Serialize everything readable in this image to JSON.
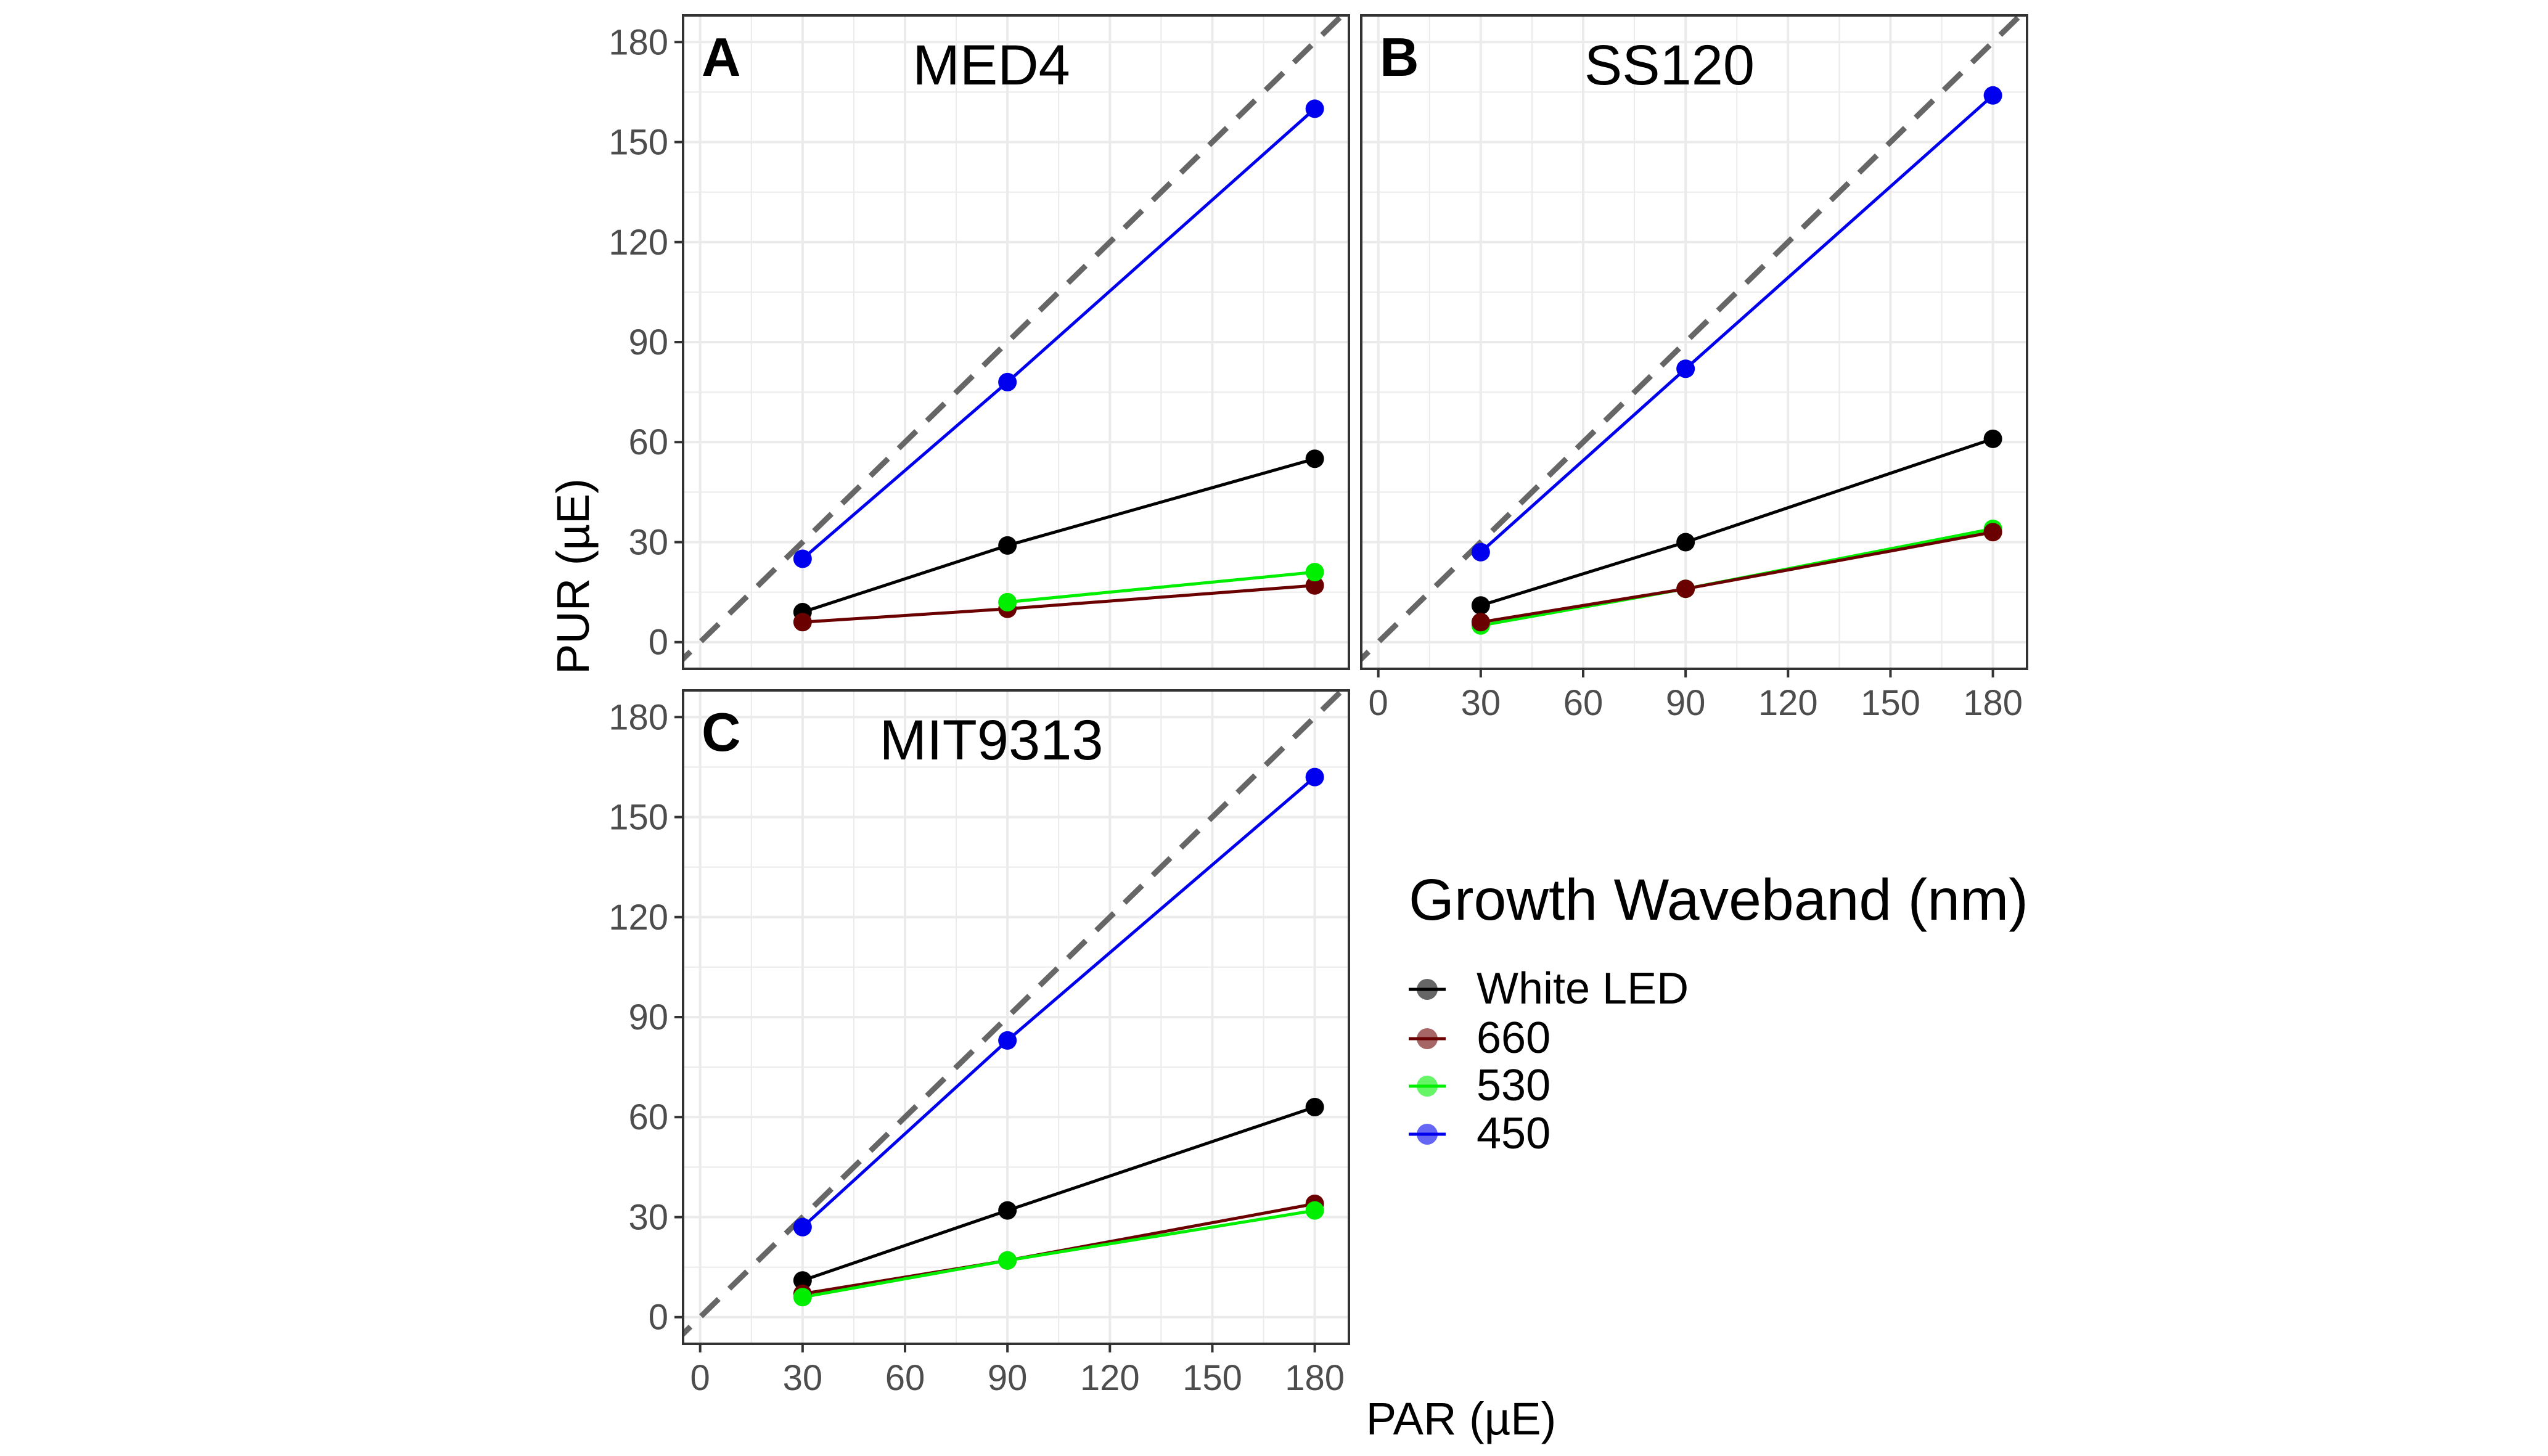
{
  "figure": {
    "ylabel": "PUR (µE)",
    "xlabel": "PAR (µE)",
    "legend": {
      "title": "Growth Waveband (nm)",
      "placement": "right-center",
      "entries": [
        {
          "label": "White LED",
          "color": "#000000"
        },
        {
          "label": "660",
          "color": "#6b0000"
        },
        {
          "label": "530",
          "color": "#00ee00"
        },
        {
          "label": "450",
          "color": "#0000ee"
        }
      ]
    },
    "colors": {
      "grid": "#ebebeb",
      "panel_border": "#333333",
      "reference_line": "#666666"
    }
  },
  "chart_data": [
    {
      "type": "line",
      "panel_letter": "A",
      "title": "MED4",
      "xlim": [
        -5,
        190
      ],
      "ylim": [
        -8,
        188
      ],
      "xticks": [
        0,
        30,
        60,
        90,
        120,
        150,
        180
      ],
      "yticks": [
        0,
        30,
        60,
        90,
        120,
        150,
        180
      ],
      "show_x_ticklabels": false,
      "show_y_ticklabels": true,
      "reference_line": "y = x",
      "x": [
        30,
        90,
        180
      ],
      "series": [
        {
          "name": "White LED",
          "color": "#000000",
          "values": [
            9,
            29,
            55
          ]
        },
        {
          "name": "660",
          "color": "#6b0000",
          "values": [
            6,
            10,
            17
          ]
        },
        {
          "name": "530",
          "color": "#00ee00",
          "values": [
            null,
            12,
            21
          ]
        },
        {
          "name": "450",
          "color": "#0000ee",
          "values": [
            25,
            78,
            160
          ]
        }
      ]
    },
    {
      "type": "line",
      "panel_letter": "B",
      "title": "SS120",
      "xlim": [
        -5,
        190
      ],
      "ylim": [
        -8,
        188
      ],
      "xticks": [
        0,
        30,
        60,
        90,
        120,
        150,
        180
      ],
      "yticks": [
        0,
        30,
        60,
        90,
        120,
        150,
        180
      ],
      "show_x_ticklabels": true,
      "show_y_ticklabels": false,
      "reference_line": "y = x",
      "x": [
        30,
        90,
        180
      ],
      "series": [
        {
          "name": "White LED",
          "color": "#000000",
          "values": [
            11,
            30,
            61
          ]
        },
        {
          "name": "530",
          "color": "#00ee00",
          "values": [
            5,
            16,
            34
          ]
        },
        {
          "name": "660",
          "color": "#6b0000",
          "values": [
            6,
            16,
            33
          ]
        },
        {
          "name": "450",
          "color": "#0000ee",
          "values": [
            27,
            82,
            164
          ]
        }
      ]
    },
    {
      "type": "line",
      "panel_letter": "C",
      "title": "MIT9313",
      "xlim": [
        -5,
        190
      ],
      "ylim": [
        -8,
        188
      ],
      "xticks": [
        0,
        30,
        60,
        90,
        120,
        150,
        180
      ],
      "yticks": [
        0,
        30,
        60,
        90,
        120,
        150,
        180
      ],
      "show_x_ticklabels": true,
      "show_y_ticklabels": true,
      "reference_line": "y = x",
      "x": [
        30,
        90,
        180
      ],
      "series": [
        {
          "name": "White LED",
          "color": "#000000",
          "values": [
            11,
            32,
            63
          ]
        },
        {
          "name": "660",
          "color": "#6b0000",
          "values": [
            7,
            17,
            34
          ]
        },
        {
          "name": "530",
          "color": "#00ee00",
          "values": [
            6,
            17,
            32
          ]
        },
        {
          "name": "450",
          "color": "#0000ee",
          "values": [
            27,
            83,
            162
          ]
        }
      ]
    }
  ]
}
